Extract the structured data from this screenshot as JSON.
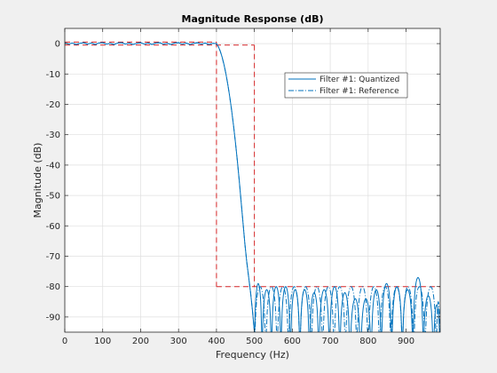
{
  "chart_data": {
    "type": "line",
    "title": "Magnitude Response (dB)",
    "xlabel": "Frequency (Hz)",
    "ylabel": "Magnitude (dB)",
    "xlim": [
      0,
      990
    ],
    "ylim": [
      -95,
      5
    ],
    "xticks": [
      0,
      100,
      200,
      300,
      400,
      500,
      600,
      700,
      800,
      900
    ],
    "yticks": [
      0,
      -10,
      -20,
      -30,
      -40,
      -50,
      -60,
      -70,
      -80,
      -90
    ],
    "grid": true,
    "legend_position": "top-right",
    "colors": {
      "quantized": "#0072bd",
      "reference": "#0072bd",
      "mask": "#d62728"
    },
    "series": [
      {
        "name": "Filter #1: Quantized",
        "style": "solid",
        "x": [
          0,
          10,
          20,
          30,
          40,
          50,
          60,
          70,
          80,
          90,
          100,
          110,
          120,
          130,
          140,
          150,
          160,
          170,
          180,
          190,
          200,
          210,
          220,
          230,
          240,
          250,
          260,
          270,
          280,
          290,
          300,
          310,
          320,
          330,
          340,
          350,
          360,
          370,
          380,
          390,
          400,
          405,
          410,
          415,
          420,
          425,
          430,
          435,
          440,
          445,
          450,
          455,
          460,
          465,
          470,
          475,
          480,
          485,
          490,
          495,
          500
        ],
        "y": [
          0.3,
          -0.2,
          0.2,
          -0.3,
          0.1,
          0.3,
          -0.2,
          0.2,
          -0.3,
          0.2,
          0.3,
          -0.2,
          0.1,
          -0.3,
          0.2,
          0.3,
          -0.2,
          0.2,
          -0.3,
          0.1,
          0.3,
          -0.2,
          0.2,
          -0.3,
          0.2,
          0.3,
          -0.2,
          0.1,
          -0.3,
          0.2,
          0.3,
          -0.2,
          0.2,
          -0.3,
          0.1,
          0.3,
          -0.2,
          0.2,
          -0.3,
          0.1,
          0.0,
          -1.0,
          -2.5,
          -4.5,
          -7.0,
          -10.0,
          -13.5,
          -17.5,
          -22.0,
          -27.0,
          -32.5,
          -38.5,
          -45.0,
          -52.0,
          -59.0,
          -66.0,
          -72.0,
          -77.0,
          -82.0,
          -88.0,
          -95.0
        ]
      },
      {
        "name": "Filter #1: Reference",
        "style": "dash-dot",
        "x": [
          0,
          10,
          20,
          30,
          40,
          50,
          60,
          70,
          80,
          90,
          100,
          110,
          120,
          130,
          140,
          150,
          160,
          170,
          180,
          190,
          200,
          210,
          220,
          230,
          240,
          250,
          260,
          270,
          280,
          290,
          300,
          310,
          320,
          330,
          340,
          350,
          360,
          370,
          380,
          390,
          400,
          405,
          410,
          415,
          420,
          425,
          430,
          435,
          440,
          445,
          450,
          455,
          460,
          465,
          470,
          475,
          480,
          485,
          490,
          495,
          500
        ],
        "y": [
          0.3,
          -0.2,
          0.2,
          -0.3,
          0.1,
          0.3,
          -0.2,
          0.2,
          -0.3,
          0.2,
          0.3,
          -0.2,
          0.1,
          -0.3,
          0.2,
          0.3,
          -0.2,
          0.2,
          -0.3,
          0.1,
          0.3,
          -0.2,
          0.2,
          -0.3,
          0.2,
          0.3,
          -0.2,
          0.1,
          -0.3,
          0.2,
          0.3,
          -0.2,
          0.2,
          -0.3,
          0.1,
          0.3,
          -0.2,
          0.2,
          -0.3,
          0.1,
          0.0,
          -1.0,
          -2.5,
          -4.5,
          -7.0,
          -10.0,
          -13.5,
          -17.5,
          -22.0,
          -27.0,
          -32.5,
          -38.5,
          -45.0,
          -52.0,
          -59.0,
          -66.0,
          -72.0,
          -77.0,
          -82.0,
          -88.0,
          -95.0
        ]
      }
    ],
    "stopband_quantized_lobes": [
      {
        "start": 500,
        "end": 520,
        "peak": -79
      },
      {
        "start": 520,
        "end": 545,
        "peak": -81
      },
      {
        "start": 545,
        "end": 570,
        "peak": -80
      },
      {
        "start": 570,
        "end": 595,
        "peak": -80
      },
      {
        "start": 595,
        "end": 620,
        "peak": -81
      },
      {
        "start": 620,
        "end": 645,
        "peak": -81
      },
      {
        "start": 645,
        "end": 670,
        "peak": -82
      },
      {
        "start": 670,
        "end": 698,
        "peak": -81
      },
      {
        "start": 698,
        "end": 725,
        "peak": -80
      },
      {
        "start": 725,
        "end": 752,
        "peak": -82
      },
      {
        "start": 752,
        "end": 780,
        "peak": -84
      },
      {
        "start": 780,
        "end": 808,
        "peak": -84
      },
      {
        "start": 808,
        "end": 835,
        "peak": -81
      },
      {
        "start": 835,
        "end": 862,
        "peak": -79
      },
      {
        "start": 862,
        "end": 890,
        "peak": -80
      },
      {
        "start": 890,
        "end": 918,
        "peak": -81
      },
      {
        "start": 918,
        "end": 945,
        "peak": -77
      },
      {
        "start": 945,
        "end": 972,
        "peak": -83
      },
      {
        "start": 972,
        "end": 990,
        "peak": -86
      }
    ],
    "stopband_reference_lobes": [
      {
        "start": 500,
        "end": 530,
        "peak": -80
      },
      {
        "start": 530,
        "end": 560,
        "peak": -80
      },
      {
        "start": 560,
        "end": 590,
        "peak": -80
      },
      {
        "start": 590,
        "end": 620,
        "peak": -80
      },
      {
        "start": 620,
        "end": 650,
        "peak": -80
      },
      {
        "start": 650,
        "end": 680,
        "peak": -80
      },
      {
        "start": 680,
        "end": 710,
        "peak": -80
      },
      {
        "start": 710,
        "end": 740,
        "peak": -80
      },
      {
        "start": 740,
        "end": 770,
        "peak": -80
      },
      {
        "start": 770,
        "end": 800,
        "peak": -80
      },
      {
        "start": 800,
        "end": 830,
        "peak": -80
      },
      {
        "start": 830,
        "end": 860,
        "peak": -80
      },
      {
        "start": 860,
        "end": 890,
        "peak": -80
      },
      {
        "start": 890,
        "end": 920,
        "peak": -80
      },
      {
        "start": 920,
        "end": 950,
        "peak": -80
      },
      {
        "start": 950,
        "end": 980,
        "peak": -80
      },
      {
        "start": 980,
        "end": 990,
        "peak": -85
      }
    ],
    "mask": {
      "style": "dashed",
      "passband_upper": {
        "x": [
          0,
          400
        ],
        "y": [
          0.5,
          0.5
        ]
      },
      "passband_lower": {
        "x": [
          0,
          500
        ],
        "y": [
          -0.5,
          -0.5
        ]
      },
      "edge_400": {
        "x": [
          400,
          400
        ],
        "y": [
          0.5,
          -80
        ]
      },
      "edge_500": {
        "x": [
          500,
          500
        ],
        "y": [
          -0.5,
          -80
        ]
      },
      "stopband": {
        "x": [
          400,
          990
        ],
        "y": [
          -80,
          -80
        ]
      }
    }
  }
}
